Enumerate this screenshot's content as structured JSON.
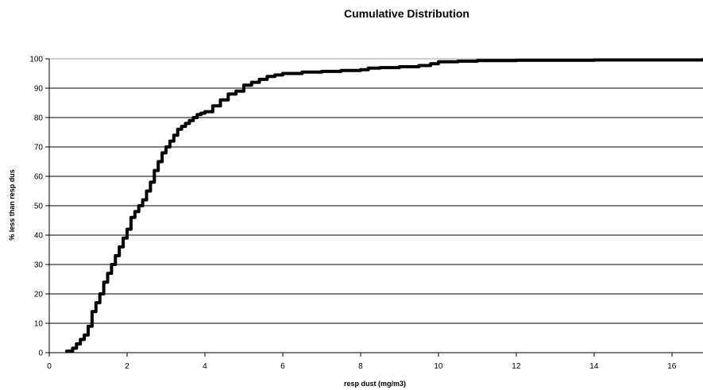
{
  "chart_data": {
    "type": "line",
    "title": "Cumulative Distribution",
    "xlabel": "resp dust (mg/m3)",
    "ylabel": "% less than resp dus",
    "xlim": [
      0,
      16.8
    ],
    "ylim": [
      0,
      100
    ],
    "x_ticks": [
      "0",
      "2",
      "4",
      "6",
      "8",
      "10",
      "12",
      "14",
      "16"
    ],
    "y_ticks": [
      "0",
      "10",
      "20",
      "30",
      "40",
      "50",
      "60",
      "70",
      "80",
      "90",
      "100"
    ],
    "grid": "horizontal",
    "legend": "none",
    "line_color": "#000000",
    "series": [
      {
        "x": [
          0.45,
          0.6,
          0.7,
          0.8,
          0.9,
          1.0,
          1.1,
          1.2,
          1.3,
          1.4,
          1.5,
          1.6,
          1.7,
          1.8,
          1.9,
          2.0,
          2.1,
          2.2,
          2.3,
          2.4,
          2.5,
          2.6,
          2.7,
          2.8,
          2.9,
          3.0,
          3.1,
          3.2,
          3.3,
          3.4,
          3.5,
          3.6,
          3.7,
          3.8,
          3.9,
          4.0,
          4.2,
          4.4,
          4.6,
          4.8,
          5.0,
          5.2,
          5.4,
          5.6,
          5.8,
          6.0,
          6.5,
          7.0,
          7.5,
          8.0,
          8.2,
          8.5,
          9.0,
          9.5,
          9.8,
          10.0,
          10.5,
          11.0,
          12.0,
          14.0,
          16.8
        ],
        "y": [
          0.5,
          1.5,
          3,
          4.5,
          6,
          9,
          14,
          17,
          20,
          24,
          27,
          30,
          33,
          36,
          39,
          42,
          46,
          48,
          50,
          52,
          55,
          58,
          62,
          65,
          68,
          70,
          72,
          74,
          76,
          77,
          78,
          79,
          80,
          81,
          81.5,
          82,
          84,
          86,
          88,
          89,
          91,
          92,
          93,
          94,
          94.5,
          95,
          95.5,
          95.7,
          96,
          96.3,
          96.8,
          97,
          97.3,
          97.7,
          98.3,
          99,
          99.2,
          99.4,
          99.5,
          99.6,
          99.8
        ]
      }
    ]
  }
}
